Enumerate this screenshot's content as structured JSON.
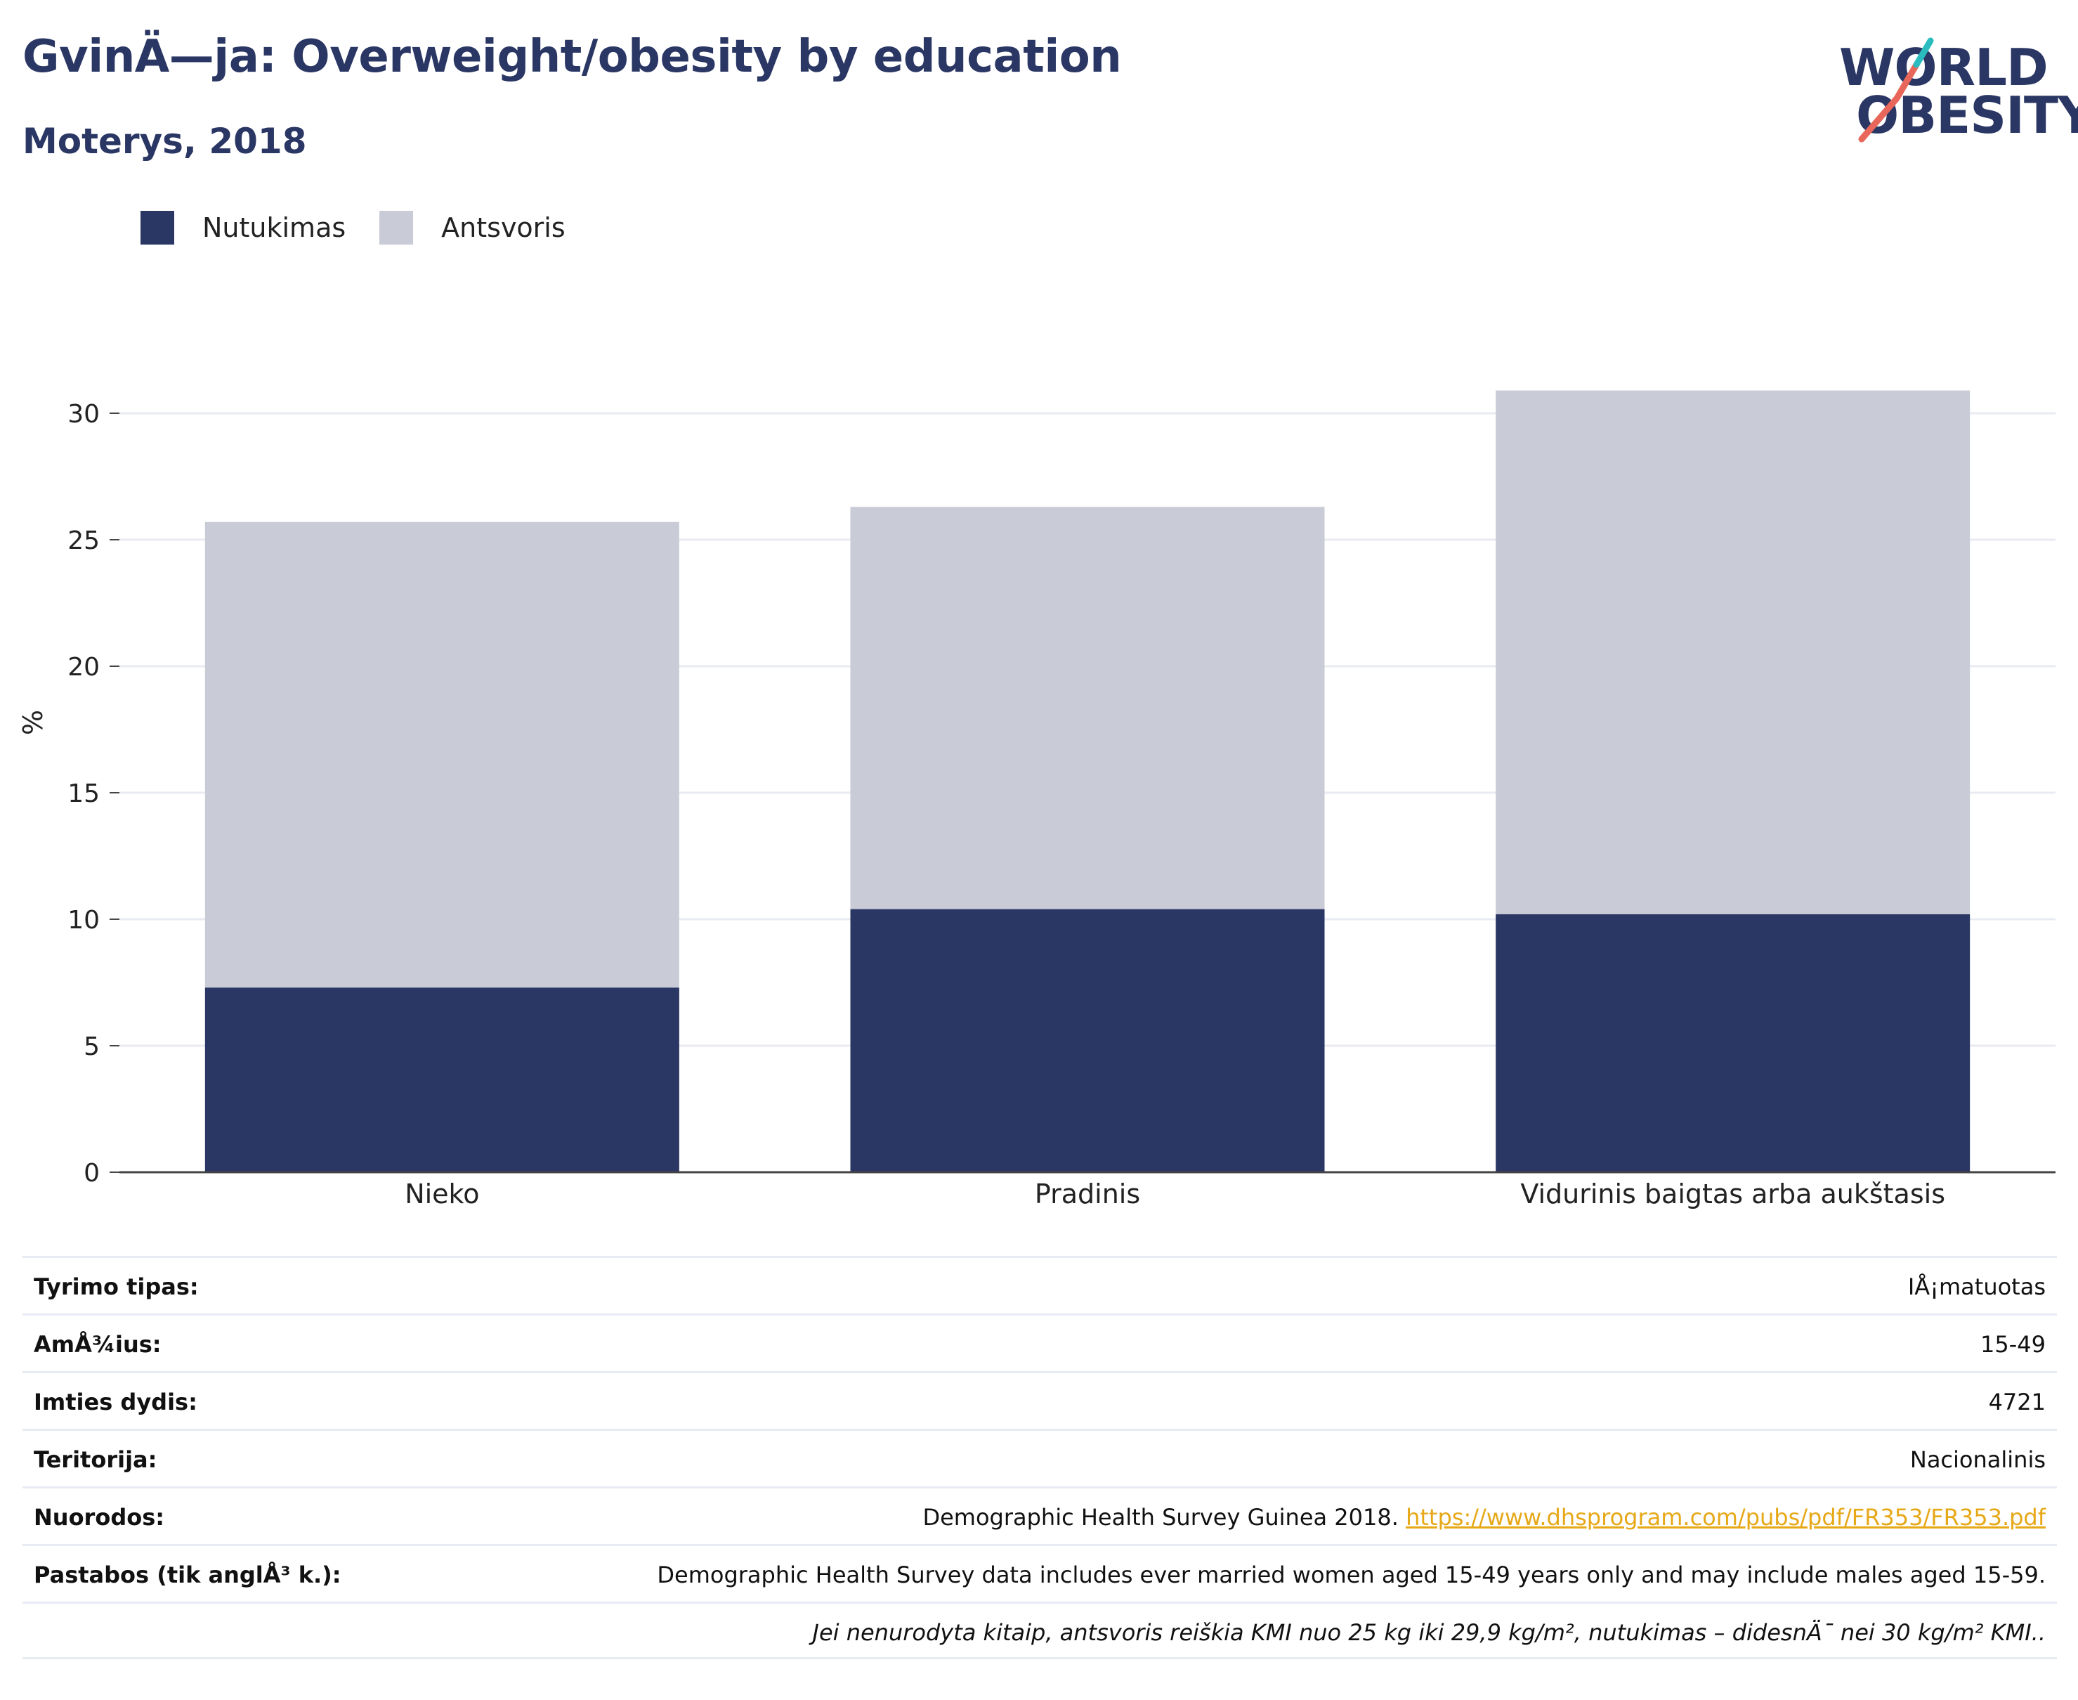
{
  "header": {
    "title": "GvinÄ—ja: Overweight/obesity by education",
    "subtitle": "Moterys, 2018"
  },
  "logo": {
    "line1": "WORLD",
    "line2": "OBESITY",
    "colors": {
      "navy": "#2a3663",
      "teal": "#2bbcc0",
      "coral": "#e8675a"
    }
  },
  "legend": [
    {
      "label": "Nutukimas",
      "color": "#2a3663"
    },
    {
      "label": "Antsvoris",
      "color": "#c9cbd7"
    }
  ],
  "chart_data": {
    "type": "bar",
    "stacked": true,
    "categories": [
      "Nieko",
      "Pradinis",
      "Vidurinis baigtas arba aukštasis"
    ],
    "series": [
      {
        "name": "Nutukimas",
        "color": "#2a3663",
        "values": [
          7.3,
          10.4,
          10.2
        ]
      },
      {
        "name": "Antsvoris",
        "color": "#c9cbd7",
        "values": [
          18.4,
          15.9,
          20.7
        ]
      }
    ],
    "ylabel": "%",
    "xlabel": "",
    "ylim": [
      0,
      32
    ],
    "yticks": [
      0,
      5,
      10,
      15,
      20,
      25,
      30
    ],
    "grid": true,
    "legend_position": "top-left"
  },
  "info_table": {
    "rows": [
      {
        "key": "Tyrimo tipas:",
        "value": "IÅ¡matuotas"
      },
      {
        "key": "AmÅ¾ius:",
        "value": "15-49"
      },
      {
        "key": "Imties dydis:",
        "value": "4721"
      },
      {
        "key": "Teritorija:",
        "value": "Nacionalinis"
      },
      {
        "key": "Nuorodos:",
        "value": "Demographic Health Survey Guinea 2018. ",
        "link": "https://www.dhsprogram.com/pubs/pdf/FR353/FR353.pdf"
      },
      {
        "key": "Pastabos (tik anglÅ³ k.):",
        "value": "Demographic Health Survey data includes ever married women aged 15-49 years only and may include males aged 15-59."
      },
      {
        "key": "",
        "value": "Jei nenurodyta kitaip, antsvoris reiškia KMI nuo 25 kg iki 29,9 kg/m², nutukimas – didesnÄ¯ nei 30 kg/m² KMI.."
      }
    ]
  }
}
